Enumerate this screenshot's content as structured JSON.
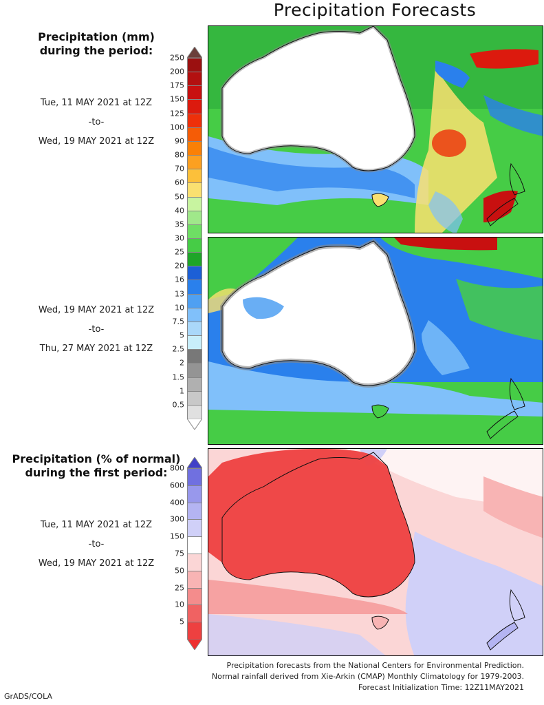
{
  "title": "Precipitation Forecasts",
  "amount_legend": {
    "heading_line1": "Precipitation (mm)",
    "heading_line2": "during the period:",
    "labels": [
      "250",
      "200",
      "175",
      "150",
      "125",
      "100",
      "90",
      "80",
      "70",
      "60",
      "50",
      "40",
      "35",
      "30",
      "25",
      "20",
      "16",
      "13",
      "10",
      "7.5",
      "5",
      "2.5",
      "2",
      "1.5",
      "1",
      "0.5"
    ],
    "colors": [
      "#9b1010",
      "#b31010",
      "#c81010",
      "#dc1a0e",
      "#ee300a",
      "#f55c06",
      "#fa8006",
      "#fca020",
      "#fcc03a",
      "#fae070",
      "#c8f4a0",
      "#a0e88a",
      "#6ede64",
      "#46cc46",
      "#1ea528",
      "#1c5fd6",
      "#2a80ec",
      "#4fa0f2",
      "#80c0fa",
      "#aad8fa",
      "#c8eefa",
      "#787878",
      "#949494",
      "#b0b0b0",
      "#c8c8c8",
      "#e0e0e0"
    ],
    "top_arrow_color": "#6b3f3a",
    "bottom_arrow_color": "#ffffff"
  },
  "period1": {
    "start": "Tue, 11 MAY 2021 at 12Z",
    "sep": "-to-",
    "end": "Wed, 19 MAY 2021 at 12Z"
  },
  "period2": {
    "start": "Wed, 19 MAY 2021 at 12Z",
    "sep": "-to-",
    "end": "Thu, 27 MAY 2021 at 12Z"
  },
  "percent_legend": {
    "heading_line1": "Precipitation (% of normal)",
    "heading_line2": "during the first period:",
    "labels": [
      "800",
      "600",
      "400",
      "300",
      "150",
      "75",
      "50",
      "25",
      "10",
      "5"
    ],
    "colors": [
      "#7070e0",
      "#9898ec",
      "#b4b4f2",
      "#d0d0f8",
      "#ffffff",
      "#fbd6d6",
      "#f8b4b4",
      "#f48c8c",
      "#f06262",
      "#ee4040"
    ],
    "top_arrow_color": "#4040c8",
    "bottom_arrow_color": "#ee3030"
  },
  "period3": {
    "start": "Tue, 11 MAY 2021 at 12Z",
    "sep": "-to-",
    "end": "Wed, 19 MAY 2021 at 12Z"
  },
  "footer": {
    "line1": "Precipitation forecasts from the National Centers for Environmental Prediction.",
    "line2": "Normal rainfall derived from Xie-Arkin (CMAP) Monthly Climatology for 1979-2003.",
    "line3": "Forecast Initialization Time: 12Z11MAY2021"
  },
  "credit": "GrADS/COLA"
}
